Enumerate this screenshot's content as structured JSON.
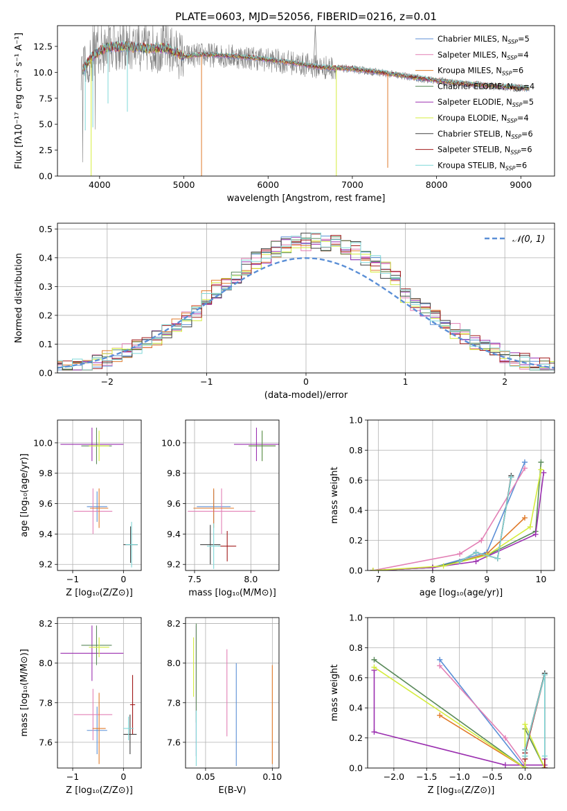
{
  "colors": {
    "chabrier_miles": "#5b8fd6",
    "salpeter_miles": "#e27fb4",
    "kroupa_miles": "#e07a2a",
    "chabrier_elodie": "#5a8a5a",
    "salpeter_elodie": "#9b30b0",
    "kroupa_elodie": "#d4ec3c",
    "chabrier_stelib": "#404040",
    "salpeter_stelib": "#a01818",
    "kroupa_stelib": "#7fd8d8",
    "grid": "#b0b0b0",
    "normal_curve": "#5b8fd6"
  },
  "chart_data": [
    {
      "id": "spectrum",
      "type": "line",
      "title": "PLATE=0603, MJD=52056, FIBERID=0216, z=0.01",
      "xlabel": "wavelength [Angstrom, rest frame]",
      "ylabel": "Flux [fλ10⁻¹⁷ erg cm⁻² s⁻¹ A⁻¹]",
      "xlim": [
        3500,
        9400
      ],
      "ylim": [
        0,
        14.5
      ],
      "xticks": [
        4000,
        5000,
        6000,
        7000,
        8000,
        9000
      ],
      "yticks": [
        0.0,
        2.5,
        5.0,
        7.5,
        10.0,
        12.5
      ],
      "grid": false,
      "legend_position": "top-right",
      "legend": [
        "Chabrier MILES, N_SSP=5",
        "Salpeter MILES, N_SSP=4",
        "Kroupa MILES, N_SSP=6",
        "Chabrier ELODIE, N_SSP=4",
        "Salpeter ELODIE, N_SSP=5",
        "Kroupa ELODIE, N_SSP=4",
        "Chabrier STELIB, N_SSP=6",
        "Salpeter STELIB, N_SSP=6",
        "Kroupa STELIB, N_SSP=6"
      ],
      "continuum": {
        "x": [
          3800,
          3900,
          4000,
          4100,
          4300,
          4500,
          4800,
          5000,
          5200,
          5500,
          5800,
          6000,
          6300,
          6600,
          7000,
          7400,
          7800,
          8200,
          8600,
          9000,
          9100
        ],
        "y": [
          10.2,
          11.4,
          12.0,
          12.4,
          12.5,
          12.3,
          12.3,
          11.5,
          11.7,
          11.6,
          11.4,
          11.2,
          10.9,
          10.5,
          10.3,
          9.9,
          9.4,
          9.0,
          8.7,
          8.5,
          8.4
        ]
      },
      "dips": [
        {
          "x": 5210,
          "y": 0.0
        },
        {
          "x": 6810,
          "y": 0.0
        },
        {
          "x": 7420,
          "y": 0.8
        },
        {
          "x": 3900,
          "y": 0.0
        },
        {
          "x": 3830,
          "y": 4.4
        },
        {
          "x": 3920,
          "y": 4.7
        },
        {
          "x": 4330,
          "y": 6.2
        },
        {
          "x": 4100,
          "y": 7.0
        }
      ]
    },
    {
      "id": "residuals",
      "type": "histogram",
      "xlabel": "(data-model)/error",
      "ylabel": "Normed distribution",
      "xlim": [
        -2.5,
        2.5
      ],
      "ylim": [
        0,
        0.52
      ],
      "xticks": [
        -2,
        -1,
        0,
        1,
        2
      ],
      "yticks": [
        0.0,
        0.1,
        0.2,
        0.3,
        0.4,
        0.5
      ],
      "grid": true,
      "legend": [
        "𝒩(0, 1)"
      ],
      "legend_position": "top-right",
      "bin_width": 0.1
    },
    {
      "id": "age-vs-Z",
      "type": "errorbar",
      "xlabel": "Z [log₁₀(Z/Z⊙)]",
      "ylabel": "age  [log₁₀(age/yr)]",
      "xlim": [
        -1.3,
        0.35
      ],
      "ylim": [
        9.16,
        10.15
      ],
      "xticks": [
        -1,
        0
      ],
      "yticks": [
        9.2,
        9.4,
        9.6,
        9.8,
        10.0
      ],
      "grid": true,
      "points": [
        {
          "x": -0.62,
          "y": 9.99,
          "xerr": 0.62,
          "yerr": 0.11,
          "series": "salpeter_elodie"
        },
        {
          "x": -0.53,
          "y": 9.98,
          "xerr": 0.3,
          "yerr": 0.12,
          "series": "chabrier_elodie"
        },
        {
          "x": -0.48,
          "y": 9.98,
          "xerr": 0.2,
          "yerr": 0.1,
          "series": "kroupa_elodie"
        },
        {
          "x": -0.52,
          "y": 9.58,
          "xerr": 0.2,
          "yerr": 0.1,
          "series": "chabrier_miles"
        },
        {
          "x": -0.6,
          "y": 9.55,
          "xerr": 0.38,
          "yerr": 0.15,
          "series": "salpeter_miles"
        },
        {
          "x": -0.48,
          "y": 9.57,
          "xerr": 0.18,
          "yerr": 0.13,
          "series": "kroupa_miles"
        },
        {
          "x": 0.14,
          "y": 9.33,
          "xerr": 0.14,
          "yerr": 0.12,
          "series": "chabrier_stelib"
        },
        {
          "x": 0.16,
          "y": 9.33,
          "xerr": 0.12,
          "yerr": 0.15,
          "series": "kroupa_stelib"
        }
      ]
    },
    {
      "id": "age-vs-mass",
      "type": "errorbar",
      "xlabel": "mass [log₁₀(M/M⊙)]",
      "ylabel": "",
      "xlim": [
        7.42,
        8.25
      ],
      "ylim": [
        9.16,
        10.15
      ],
      "xticks": [
        7.5,
        8.0
      ],
      "yticks": [
        9.2,
        9.4,
        9.6,
        9.8,
        10.0
      ],
      "grid": true,
      "points": [
        {
          "x": 8.05,
          "y": 9.99,
          "xerr": 0.2,
          "yerr": 0.11,
          "series": "salpeter_elodie"
        },
        {
          "x": 8.1,
          "y": 9.98,
          "xerr": 0.12,
          "yerr": 0.1,
          "series": "kroupa_elodie"
        },
        {
          "x": 8.1,
          "y": 9.98,
          "xerr": 0.12,
          "yerr": 0.1,
          "series": "chabrier_elodie"
        },
        {
          "x": 7.67,
          "y": 9.58,
          "xerr": 0.15,
          "yerr": 0.11,
          "series": "chabrier_miles"
        },
        {
          "x": 7.74,
          "y": 9.55,
          "xerr": 0.3,
          "yerr": 0.15,
          "series": "salpeter_miles"
        },
        {
          "x": 7.67,
          "y": 9.57,
          "xerr": 0.18,
          "yerr": 0.13,
          "series": "kroupa_miles"
        },
        {
          "x": 7.64,
          "y": 9.33,
          "xerr": 0.09,
          "yerr": 0.13,
          "series": "chabrier_stelib"
        },
        {
          "x": 7.79,
          "y": 9.32,
          "xerr": 0.08,
          "yerr": 0.1,
          "series": "salpeter_stelib"
        },
        {
          "x": 7.67,
          "y": 9.32,
          "xerr": 0.06,
          "yerr": 0.15,
          "series": "kroupa_stelib"
        }
      ]
    },
    {
      "id": "mass-weight-vs-age",
      "type": "line",
      "xlabel": "age  [log₁₀(age/yr)]",
      "ylabel": "mass weight",
      "xlim": [
        6.8,
        10.25
      ],
      "ylim": [
        0,
        1.0
      ],
      "xticks": [
        7,
        8,
        9,
        10
      ],
      "yticks": [
        0.0,
        0.2,
        0.4,
        0.6,
        0.8,
        1.0
      ],
      "grid": true,
      "series": [
        {
          "key": "chabrier_miles",
          "x": [
            6.9,
            8.0,
            9.0,
            9.7
          ],
          "y": [
            0.0,
            0.02,
            0.12,
            0.72
          ]
        },
        {
          "key": "salpeter_miles",
          "x": [
            6.9,
            8.5,
            8.9,
            9.7
          ],
          "y": [
            0.0,
            0.11,
            0.2,
            0.68
          ]
        },
        {
          "key": "kroupa_miles",
          "x": [
            6.9,
            8.0,
            8.5,
            9.0,
            9.7
          ],
          "y": [
            0.0,
            0.02,
            0.06,
            0.11,
            0.35
          ]
        },
        {
          "key": "chabrier_elodie",
          "x": [
            6.9,
            8.0,
            9.0,
            9.9,
            10.0
          ],
          "y": [
            0.0,
            0.02,
            0.1,
            0.26,
            0.72
          ]
        },
        {
          "key": "salpeter_elodie",
          "x": [
            6.9,
            8.0,
            8.8,
            9.9,
            10.05
          ],
          "y": [
            0.0,
            0.02,
            0.06,
            0.24,
            0.65
          ]
        },
        {
          "key": "kroupa_elodie",
          "x": [
            6.9,
            8.2,
            9.0,
            9.8,
            10.0
          ],
          "y": [
            0.0,
            0.03,
            0.1,
            0.29,
            0.67
          ]
        },
        {
          "key": "chabrier_stelib",
          "x": [
            8.5,
            8.8,
            9.2,
            9.45
          ],
          "y": [
            0.06,
            0.12,
            0.08,
            0.63
          ]
        },
        {
          "key": "salpeter_stelib",
          "x": [
            8.5,
            8.8,
            9.2,
            9.45
          ],
          "y": [
            0.06,
            0.12,
            0.08,
            0.62
          ]
        },
        {
          "key": "kroupa_stelib",
          "x": [
            8.5,
            8.8,
            9.2,
            9.45
          ],
          "y": [
            0.06,
            0.12,
            0.08,
            0.62
          ]
        }
      ]
    },
    {
      "id": "mass-vs-Z",
      "type": "errorbar",
      "xlabel": "Z [log₁₀(Z/Z⊙)]",
      "ylabel": "mass [log₁₀(M/M⊙)]",
      "xlim": [
        -1.3,
        0.35
      ],
      "ylim": [
        7.47,
        8.23
      ],
      "xticks": [
        -1,
        0
      ],
      "yticks": [
        7.6,
        7.8,
        8.0,
        8.2
      ],
      "grid": true,
      "points": [
        {
          "x": -0.62,
          "y": 8.05,
          "xerr": 0.62,
          "yerr": 0.14,
          "series": "salpeter_elodie"
        },
        {
          "x": -0.53,
          "y": 8.09,
          "xerr": 0.3,
          "yerr": 0.1,
          "series": "chabrier_elodie"
        },
        {
          "x": -0.48,
          "y": 8.08,
          "xerr": 0.2,
          "yerr": 0.05,
          "series": "kroupa_elodie"
        },
        {
          "x": -0.52,
          "y": 7.66,
          "xerr": 0.2,
          "yerr": 0.12,
          "series": "chabrier_miles"
        },
        {
          "x": -0.6,
          "y": 7.74,
          "xerr": 0.38,
          "yerr": 0.13,
          "series": "salpeter_miles"
        },
        {
          "x": -0.48,
          "y": 7.67,
          "xerr": 0.13,
          "yerr": 0.18,
          "series": "kroupa_miles"
        },
        {
          "x": 0.13,
          "y": 7.64,
          "xerr": 0.13,
          "yerr": 0.1,
          "series": "chabrier_stelib"
        },
        {
          "x": 0.18,
          "y": 7.79,
          "xerr": 0.05,
          "yerr": 0.15,
          "series": "salpeter_stelib"
        },
        {
          "x": 0.1,
          "y": 7.67,
          "xerr": 0.1,
          "yerr": 0.06,
          "series": "kroupa_stelib"
        }
      ]
    },
    {
      "id": "mass-vs-ebv",
      "type": "errorbar",
      "xlabel": "E(B-V)",
      "ylabel": "",
      "xlim": [
        0.035,
        0.105
      ],
      "ylim": [
        7.47,
        8.23
      ],
      "xticks": [
        0.05,
        0.1
      ],
      "yticks": [
        7.6,
        7.8,
        8.0,
        8.2
      ],
      "grid": true,
      "points": [
        {
          "x": 0.041,
          "y": 7.98,
          "xerr": 0,
          "yerr": 0.15,
          "series": "kroupa_elodie"
        },
        {
          "x": 0.043,
          "y": 7.86,
          "xerr": 0,
          "yerr": 0.33,
          "series": "salpeter_elodie"
        },
        {
          "x": 0.043,
          "y": 7.95,
          "xerr": 0,
          "yerr": 0.25,
          "series": "chabrier_elodie"
        },
        {
          "x": 0.043,
          "y": 7.62,
          "xerr": 0,
          "yerr": 0.14,
          "series": "kroupa_stelib"
        },
        {
          "x": 0.066,
          "y": 7.85,
          "xerr": 0,
          "yerr": 0.22,
          "series": "salpeter_miles"
        },
        {
          "x": 0.073,
          "y": 7.74,
          "xerr": 0,
          "yerr": 0.26,
          "series": "chabrier_miles"
        },
        {
          "x": 0.1,
          "y": 7.74,
          "xerr": 0,
          "yerr": 0.25,
          "series": "kroupa_miles"
        }
      ]
    },
    {
      "id": "mass-weight-vs-Z",
      "type": "line",
      "xlabel": "Z [log₁₀(Z/Z⊙)]",
      "ylabel": "mass weight",
      "xlim": [
        -2.4,
        0.45
      ],
      "ylim": [
        0,
        1.0
      ],
      "xticks": [
        -2.0,
        -1.5,
        -1.0,
        -0.5,
        0.0
      ],
      "yticks": [
        0.0,
        0.2,
        0.4,
        0.6,
        0.8,
        1.0
      ],
      "grid": true,
      "series": [
        {
          "key": "chabrier_miles",
          "x": [
            -1.3,
            0.0,
            0.0
          ],
          "y": [
            0.72,
            0.0,
            0.1
          ]
        },
        {
          "key": "salpeter_miles",
          "x": [
            -1.3,
            -0.3,
            0.0
          ],
          "y": [
            0.68,
            0.2,
            0.02
          ]
        },
        {
          "key": "kroupa_miles",
          "x": [
            -1.3,
            0.0,
            0.0
          ],
          "y": [
            0.35,
            0.0,
            0.12
          ]
        },
        {
          "key": "chabrier_elodie",
          "x": [
            -2.3,
            0.0,
            0.0,
            0.3
          ],
          "y": [
            0.72,
            0.0,
            0.26,
            0.0
          ]
        },
        {
          "key": "salpeter_elodie",
          "x": [
            -2.3,
            -2.3,
            -0.3,
            0.3,
            0.3
          ],
          "y": [
            0.65,
            0.24,
            0.02,
            0.02,
            0.06
          ]
        },
        {
          "key": "kroupa_elodie",
          "x": [
            -2.3,
            0.0,
            0.0,
            0.3
          ],
          "y": [
            0.67,
            0.0,
            0.29,
            0.0
          ]
        },
        {
          "key": "chabrier_stelib",
          "x": [
            0.0,
            0.0,
            0.3,
            0.3
          ],
          "y": [
            0.08,
            0.12,
            0.63,
            0.0
          ]
        },
        {
          "key": "salpeter_stelib",
          "x": [
            0.0,
            0.0,
            0.3,
            0.3
          ],
          "y": [
            0.06,
            0.1,
            0.62,
            0.0
          ]
        },
        {
          "key": "kroupa_stelib",
          "x": [
            0.0,
            0.0,
            0.3,
            0.3
          ],
          "y": [
            0.08,
            0.12,
            0.62,
            0.08
          ]
        }
      ]
    }
  ]
}
